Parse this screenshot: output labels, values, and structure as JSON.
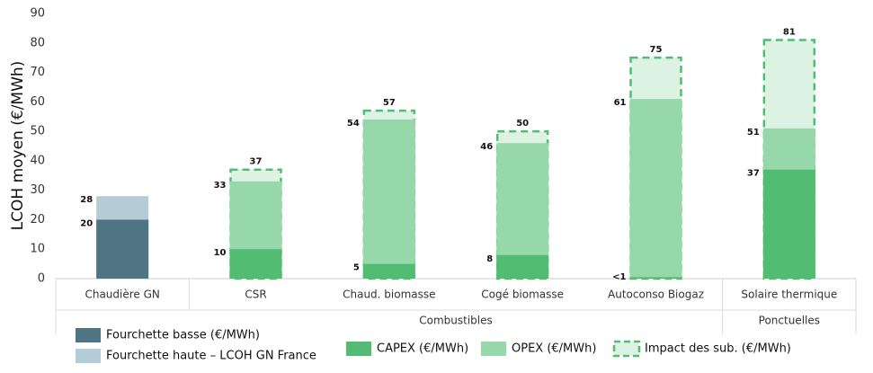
{
  "chart_data": {
    "type": "bar",
    "overlap": true,
    "y_label": "LCOH moyen (€/MWh)",
    "categories": [
      "Chaudière GN",
      "CSR",
      "Chaud. biomasse",
      "Cogé biomasse",
      "Autoconso Biogaz",
      "Solaire thermique"
    ],
    "groups": [
      {
        "label": "Combustibles",
        "span": [
          1,
          4
        ]
      },
      {
        "label": "Ponctuelles",
        "span": [
          5,
          5
        ]
      }
    ],
    "series": [
      {
        "name": "Fourchette haute – LCOH GN France",
        "color": "#b5ccd6",
        "values": [
          28,
          null,
          null,
          null,
          null,
          null
        ]
      },
      {
        "name": "Fourchette basse (€/MWh)",
        "color": "#4f7584",
        "values": [
          20,
          null,
          null,
          null,
          null,
          null
        ]
      },
      {
        "name": "Impact des sub. (€/MWh)",
        "color": "#dcf2e3",
        "dashed": true,
        "stroke": "#52bd72",
        "values": [
          null,
          37,
          57,
          50,
          75,
          81
        ]
      },
      {
        "name": "OPEX (€/MWh)",
        "color": "#96d8a9",
        "values": [
          null,
          33,
          54,
          46,
          61,
          51
        ]
      },
      {
        "name": "CAPEX (€/MWh)",
        "color": "#52bd72",
        "values": [
          null,
          10,
          5,
          8,
          0.5,
          37
        ],
        "value_labels": [
          null,
          "10",
          "5",
          "8",
          "<1",
          "37"
        ]
      }
    ],
    "ylim": [
      0,
      90
    ],
    "yticks": [
      0,
      10,
      20,
      30,
      40,
      50,
      60,
      70,
      80,
      90
    ],
    "grid": false
  }
}
